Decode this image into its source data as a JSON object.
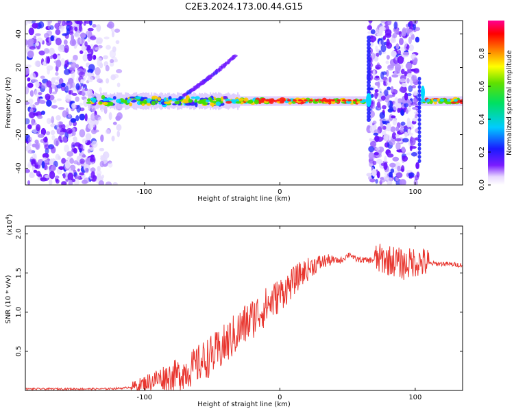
{
  "title": "C2E3.2024.173.00.44.G15",
  "charts": {
    "spectrogram": {
      "type": "heatmap",
      "xlabel": "Height of straight line (km)",
      "ylabel": "Frequency (Hz)",
      "xlim": [
        -188,
        135
      ],
      "ylim": [
        -50,
        48
      ],
      "xticks": [
        -100,
        0,
        100
      ],
      "xticklabels": [
        "-100",
        "0",
        "100"
      ],
      "yticks": [
        -40,
        -20,
        0,
        20,
        40
      ],
      "yticklabels": [
        "-40",
        "-20",
        "0",
        "20",
        "40"
      ],
      "colorbar": {
        "label": "Normalized spectral amplitude",
        "range": [
          0,
          1
        ],
        "ticks": [
          0.0,
          0.2,
          0.4,
          0.6,
          0.8
        ],
        "ticklabels": [
          "0.0",
          "0.2",
          "0.4",
          "0.6",
          "0.8"
        ]
      }
    },
    "snr": {
      "type": "line",
      "xlabel": "Height of straight line (km)",
      "ylabel": "SNR (10 * v/v)",
      "multiplier": "(x10",
      "multiplier_exp": "4",
      "multiplier_close": ")",
      "xlim": [
        -188,
        135
      ],
      "ylim": [
        0.0,
        2.1
      ],
      "xticks": [
        -100,
        0,
        100
      ],
      "xticklabels": [
        "-100",
        "0",
        "100"
      ],
      "yticks": [
        0.5,
        1.0,
        1.5,
        2.0
      ],
      "yticklabels": [
        "0.5",
        "1.0",
        "1.5",
        "2.0"
      ],
      "line_color": "#e8362f"
    }
  },
  "chart_data": {
    "type": "line",
    "series": [
      {
        "color": "#e8362f",
        "x": [
          -188,
          -170,
          -150,
          -130,
          -115,
          -105,
          -95,
          -85,
          -75,
          -65,
          -55,
          -45,
          -35,
          -25,
          -15,
          -5,
          5,
          15,
          25,
          35,
          45,
          52,
          55,
          65,
          75,
          85,
          92,
          100,
          110,
          120,
          135
        ],
        "y": [
          0.02,
          0.02,
          0.02,
          0.02,
          0.03,
          0.06,
          0.12,
          0.17,
          0.2,
          0.28,
          0.4,
          0.5,
          0.68,
          0.85,
          1.0,
          1.15,
          1.3,
          1.48,
          1.6,
          1.66,
          1.66,
          1.75,
          1.68,
          1.66,
          1.68,
          1.65,
          1.6,
          1.65,
          1.62,
          1.62,
          1.6
        ]
      }
    ],
    "xlim": [
      -188,
      135
    ],
    "ylim": [
      0.0,
      2.1
    ]
  }
}
